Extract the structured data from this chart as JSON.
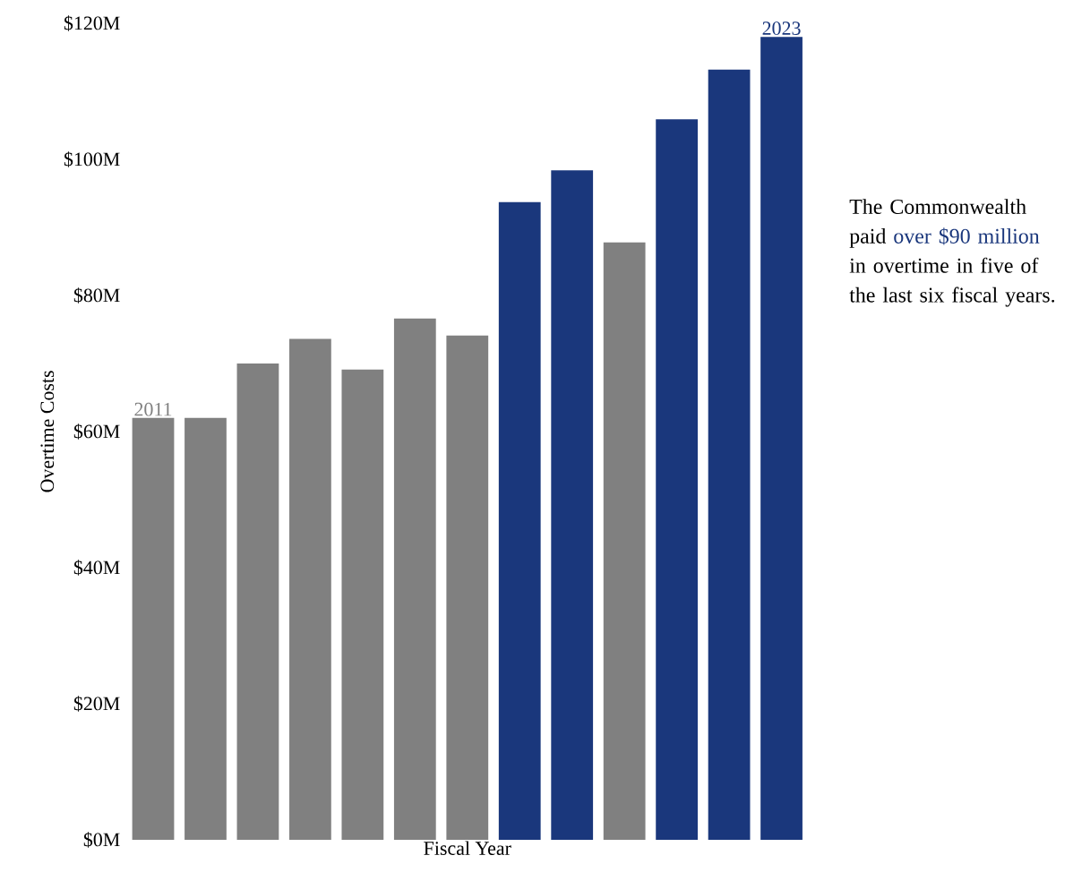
{
  "chart_data": {
    "type": "bar",
    "xlabel": "Fiscal Year",
    "ylabel": "Overtime Costs",
    "categories": [
      "2011",
      null,
      null,
      null,
      null,
      null,
      null,
      null,
      null,
      null,
      null,
      null,
      "2023"
    ],
    "values": [
      62,
      62,
      70,
      73.6,
      69.1,
      76.6,
      74.1,
      93.7,
      98.4,
      87.8,
      105.9,
      113.2,
      118
    ],
    "colors": [
      "#808080",
      "#808080",
      "#808080",
      "#808080",
      "#808080",
      "#808080",
      "#808080",
      "#1a377c",
      "#1a377c",
      "#808080",
      "#1a377c",
      "#1a377c",
      "#1a377c"
    ],
    "ylim": [
      0,
      120
    ],
    "yticks": [
      {
        "value": 0,
        "label": "$0M"
      },
      {
        "value": 20,
        "label": "$20M"
      },
      {
        "value": 40,
        "label": "$40M"
      },
      {
        "value": 60,
        "label": "$60M"
      },
      {
        "value": 80,
        "label": "$80M"
      },
      {
        "value": 100,
        "label": "$100M"
      },
      {
        "value": 120,
        "label": "$120M"
      }
    ],
    "grid": false,
    "annotations": [
      "The Commonwealth paid",
      "over $90 million",
      "in overtime in five of the last six fiscal years."
    ]
  }
}
